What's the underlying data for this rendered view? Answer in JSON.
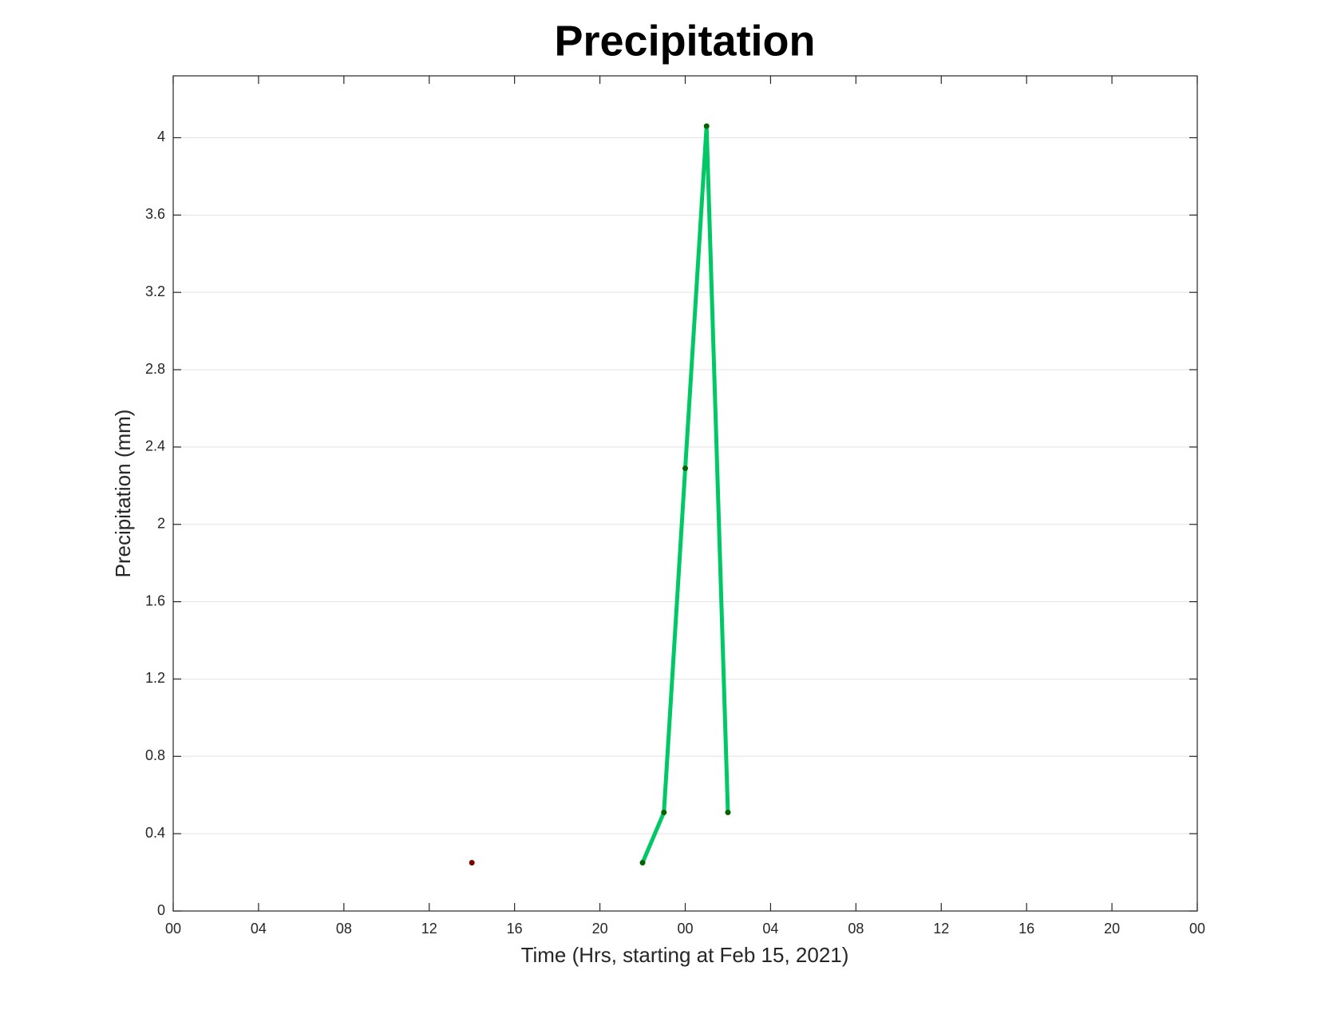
{
  "chart_data": {
    "type": "line",
    "title": "Precipitation",
    "x_label": "Time (Hrs, starting at Feb 15, 2021)",
    "y_label": "Precipitation (mm)",
    "xlim": [
      0,
      48
    ],
    "xticks": [
      {
        "value": 0,
        "label": "00"
      },
      {
        "value": 4,
        "label": "04"
      },
      {
        "value": 8,
        "label": "08"
      },
      {
        "value": 12,
        "label": "12"
      },
      {
        "value": 16,
        "label": "16"
      },
      {
        "value": 20,
        "label": "20"
      },
      {
        "value": 24,
        "label": "00"
      },
      {
        "value": 28,
        "label": "04"
      },
      {
        "value": 32,
        "label": "08"
      },
      {
        "value": 36,
        "label": "12"
      },
      {
        "value": 40,
        "label": "16"
      },
      {
        "value": 44,
        "label": "20"
      },
      {
        "value": 48,
        "label": "00"
      }
    ],
    "ylim": [
      0,
      4.32
    ],
    "yticks": [
      0,
      0.4,
      0.8,
      1.2,
      1.6,
      2,
      2.4,
      2.8,
      3.2,
      3.6,
      4
    ],
    "grid": "y",
    "series": [
      {
        "color": "#7a0000",
        "marker_color": "#7a0000",
        "x": [
          14
        ],
        "values": [
          0.25
        ]
      },
      {
        "color": "#00c864",
        "marker_color": "#006400",
        "x": [
          22,
          23,
          24,
          25,
          26
        ],
        "values": [
          0.25,
          0.51,
          2.29,
          4.06,
          0.51
        ]
      }
    ]
  }
}
